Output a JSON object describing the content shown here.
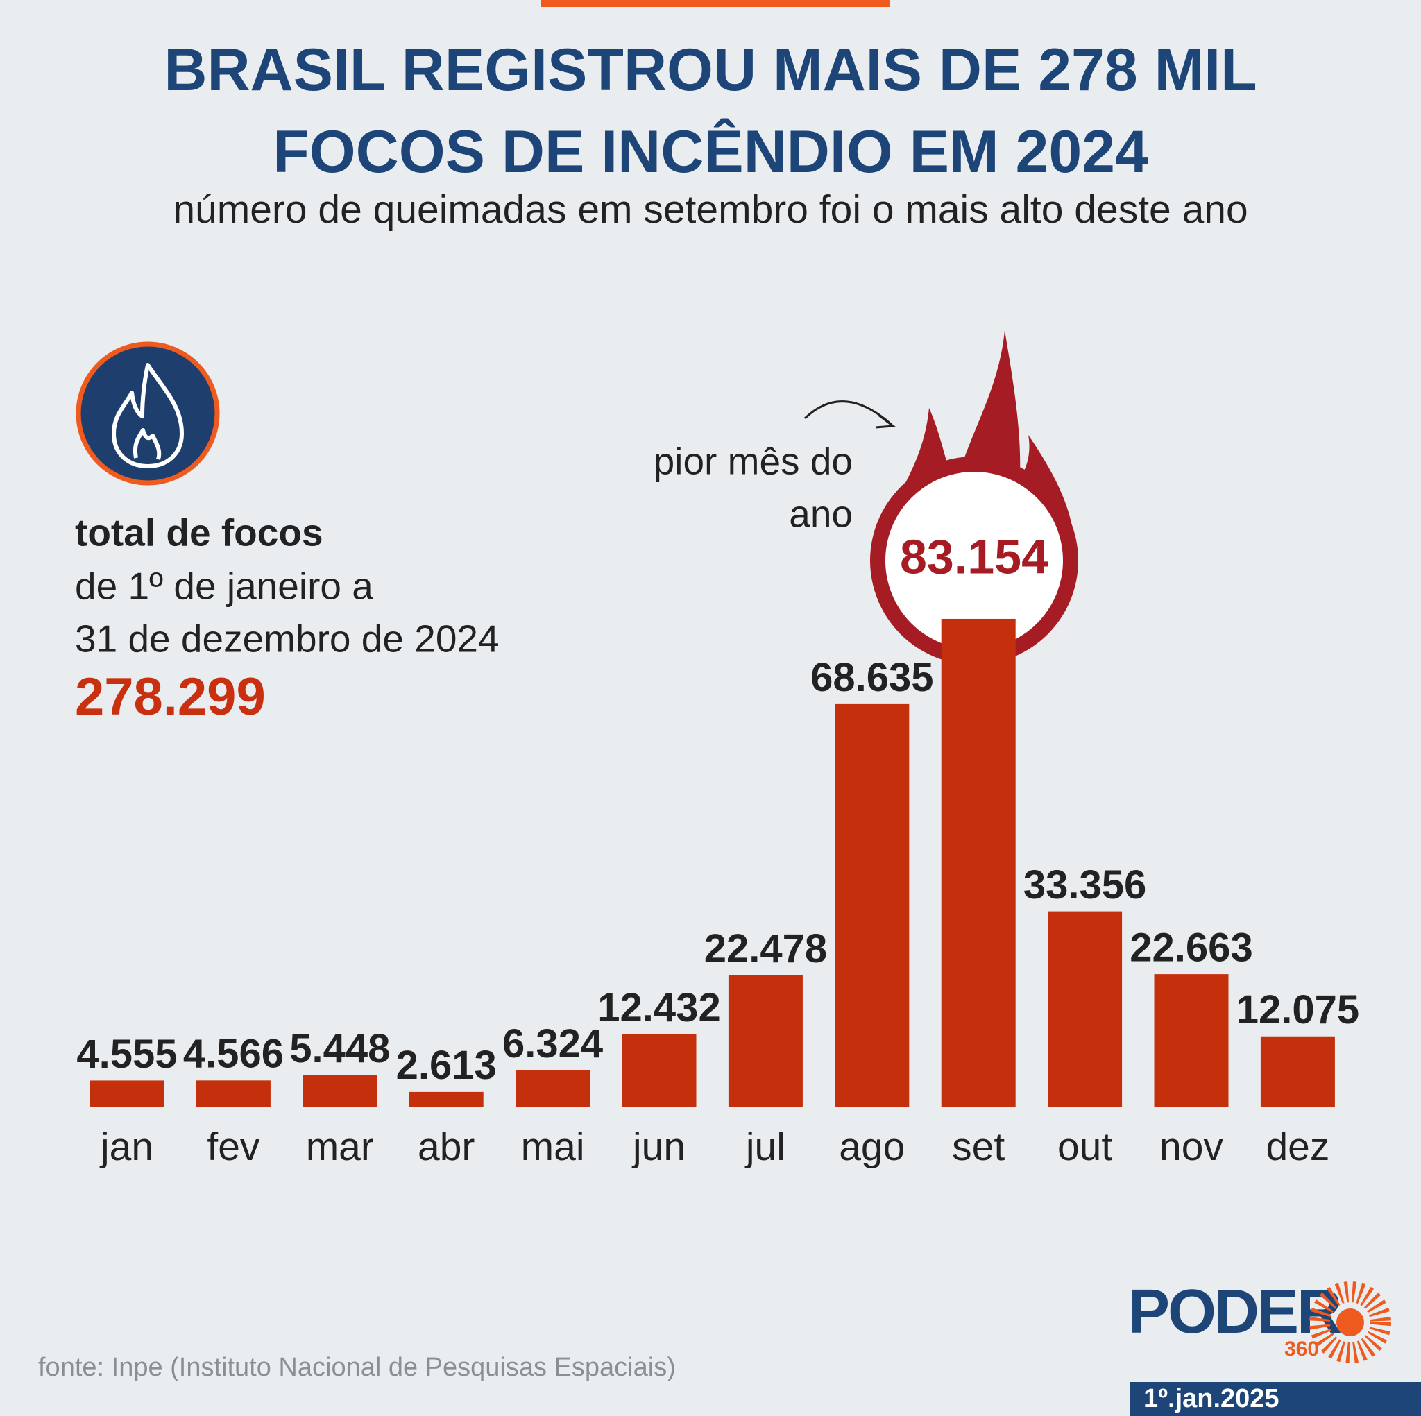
{
  "chart_data": {
    "type": "bar",
    "title": "BRASIL REGISTROU MAIS DE 278 MIL FOCOS DE INCÊNDIO EM 2024",
    "subtitle": "número de queimadas em setembro foi o mais alto deste ano",
    "categories": [
      "jan",
      "fev",
      "mar",
      "abr",
      "mai",
      "jun",
      "jul",
      "ago",
      "set",
      "out",
      "nov",
      "dez"
    ],
    "values": [
      4555,
      4566,
      5448,
      2613,
      6324,
      12432,
      22478,
      68635,
      83154,
      33356,
      22663,
      12075
    ],
    "value_labels": [
      "4.555",
      "4.566",
      "5.448",
      "2.613",
      "6.324",
      "12.432",
      "22.478",
      "68.635",
      "83.154",
      "33.356",
      "22.663",
      "12.075"
    ],
    "color": "#c4300c",
    "highlight": 8,
    "highlight_color": "#a51c24",
    "ylim": [
      0,
      90000
    ],
    "callout": [
      "pior mês do",
      "ano"
    ],
    "total_heading": "total de focos",
    "period": [
      "de 1º de janeiro a",
      "31 de dezembro de 2024"
    ],
    "total": "278.299",
    "source": "fonte: Inpe (Instituto Nacional de Pesquisas Espaciais)",
    "brand": "PODER",
    "brand_number": "360",
    "date": "1º.jan.2025"
  }
}
